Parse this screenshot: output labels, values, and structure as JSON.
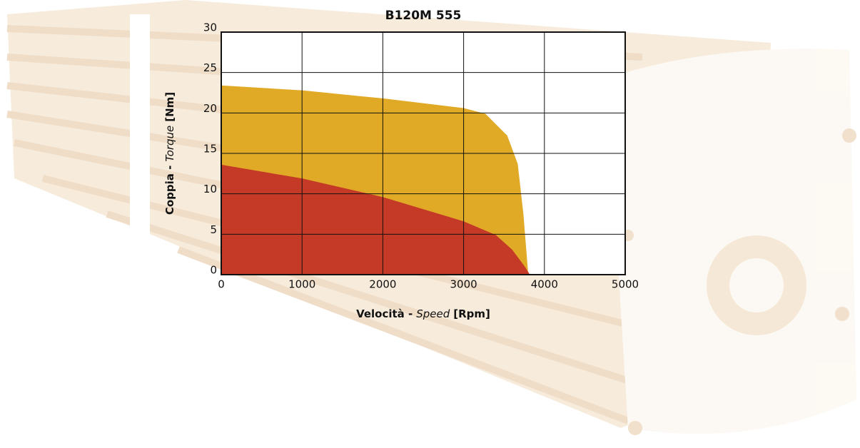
{
  "chart_data": {
    "type": "area",
    "title": "B120M 555",
    "xlabel": [
      "Velocità -",
      "Speed",
      "[Rpm]"
    ],
    "ylabel": [
      "Coppia -",
      "Torque",
      "[Nm]"
    ],
    "xlim": [
      0,
      5000
    ],
    "xticks": [
      0,
      1000,
      2000,
      3000,
      4000,
      5000
    ],
    "ylim": [
      0,
      30
    ],
    "yticks": [
      0,
      5,
      10,
      15,
      20,
      25,
      30
    ],
    "grid": true,
    "series": [
      {
        "color": "#e0aa26",
        "x": [
          0,
          1000,
          2000,
          3000,
          3270,
          3540,
          3670,
          3740,
          3800
        ],
        "values": [
          23.4,
          22.8,
          21.8,
          20.6,
          19.9,
          17.2,
          13.7,
          7.5,
          0
        ]
      },
      {
        "color": "#c43a26",
        "x": [
          0,
          1000,
          2000,
          3000,
          3400,
          3600,
          3750,
          3820
        ],
        "values": [
          13.6,
          11.9,
          9.6,
          6.6,
          4.9,
          3.1,
          1.1,
          0
        ]
      }
    ]
  }
}
